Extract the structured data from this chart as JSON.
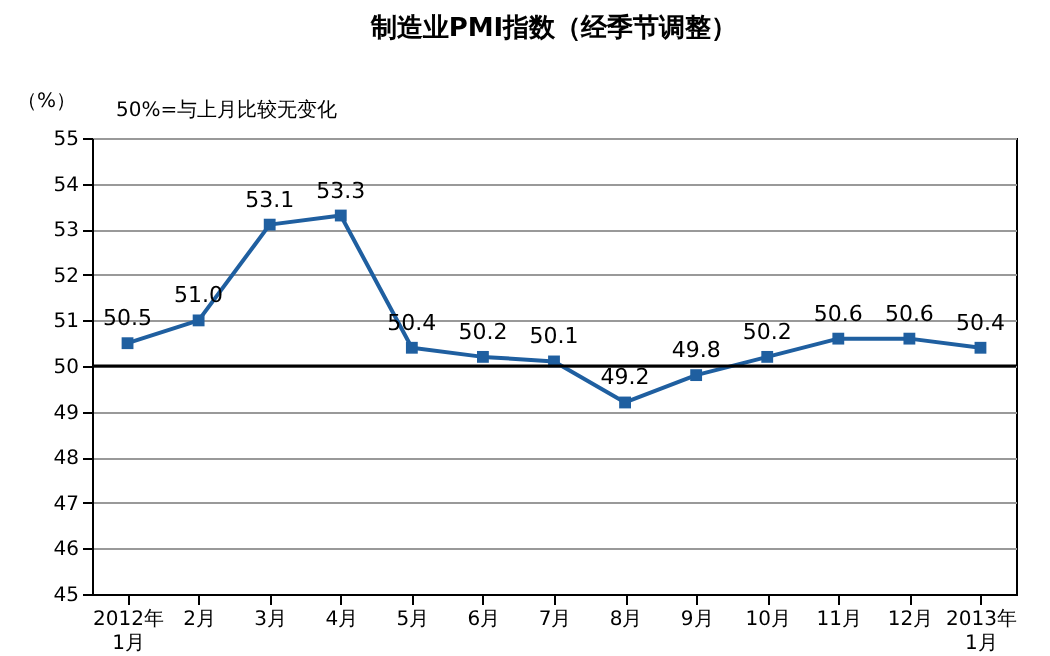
{
  "chart_data": {
    "type": "line",
    "title": "制造业PMI指数（经季节调整）",
    "ylabel": "（%）",
    "annotations": [
      "50%=与上月比较无变化"
    ],
    "categories": [
      "2012年\n1月",
      "2月",
      "3月",
      "4月",
      "5月",
      "6月",
      "7月",
      "8月",
      "9月",
      "10月",
      "11月",
      "12月",
      "2013年\n1月"
    ],
    "series": [
      {
        "color": "#1f5fa0",
        "values": [
          50.5,
          51.0,
          53.1,
          53.3,
          50.4,
          50.2,
          50.1,
          49.2,
          49.8,
          50.2,
          50.6,
          50.6,
          50.4
        ],
        "value_labels": [
          "50.5",
          "51.0",
          "53.1",
          "53.3",
          "50.4",
          "50.2",
          "50.1",
          "49.2",
          "49.8",
          "50.2",
          "50.6",
          "50.6",
          "50.4"
        ]
      }
    ],
    "ylim": [
      45,
      55
    ],
    "yticks": [
      45,
      46,
      47,
      48,
      49,
      50,
      51,
      52,
      53,
      54,
      55
    ],
    "ref_lines": [
      {
        "axis": "y",
        "value": 50,
        "color": "#000000"
      }
    ],
    "grid": "y",
    "marker": "square",
    "line_style": "solid"
  }
}
